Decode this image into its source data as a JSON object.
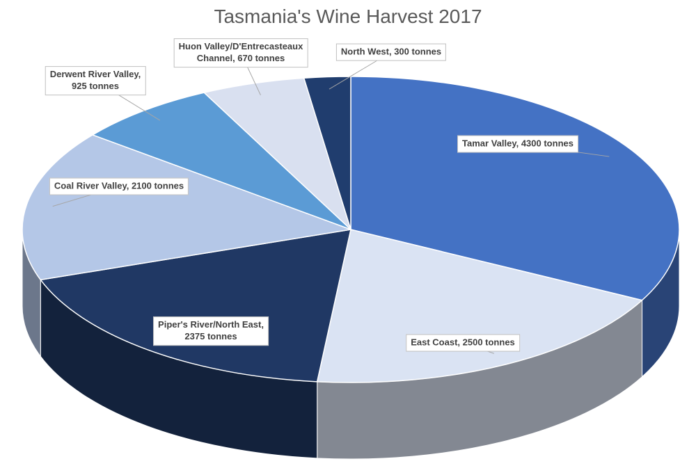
{
  "chart_data": {
    "type": "pie",
    "title": "Tasmania's Wine Harvest 2017",
    "values": [
      4300,
      2500,
      2375,
      2100,
      925,
      670,
      300
    ],
    "value_labels": [
      "Tamar Valley, 4300 tonnes",
      "East Coast, 2500 tonnes",
      "Piper's River/North East,\n2375 tonnes",
      "Coal River Valley, 2100 tonnes",
      "Derwent River Valley,\n925 tonnes",
      "Huon Valley/D'Entrecasteaux\nChannel, 670 tonnes",
      "North West, 300 tonnes"
    ],
    "colors": [
      "#4472c4",
      "#dae3f3",
      "#203864",
      "#b4c7e7",
      "#5b9bd5",
      "#d9e0f0",
      "#203d6e"
    ]
  }
}
